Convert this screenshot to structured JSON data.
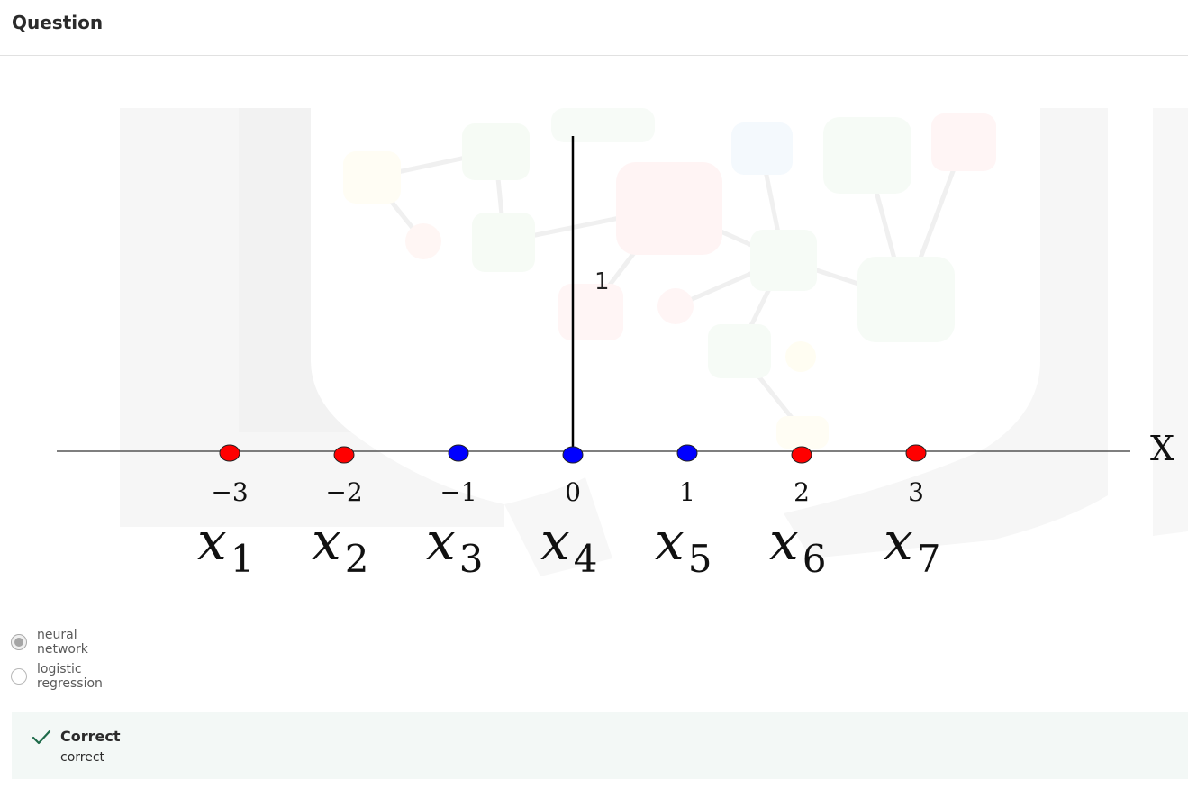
{
  "header": {
    "title": "Question"
  },
  "figure": {
    "y_tick_label": "1",
    "axis_label": "X",
    "points": [
      {
        "x": -3,
        "tick": "−3",
        "var": "x",
        "sub": "1",
        "color": "#ff0000"
      },
      {
        "x": -2,
        "tick": "−2",
        "var": "x",
        "sub": "2",
        "color": "#ff0000"
      },
      {
        "x": -1,
        "tick": "−1",
        "var": "x",
        "sub": "3",
        "color": "#0000ff"
      },
      {
        "x": 0,
        "tick": "0",
        "var": "x",
        "sub": "4",
        "color": "#0000ff"
      },
      {
        "x": 1,
        "tick": "1",
        "var": "x",
        "sub": "5",
        "color": "#0000ff"
      },
      {
        "x": 2,
        "tick": "2",
        "var": "x",
        "sub": "6",
        "color": "#ff0000"
      },
      {
        "x": 3,
        "tick": "3",
        "var": "x",
        "sub": "7",
        "color": "#ff0000"
      }
    ]
  },
  "options": [
    {
      "label": "neural network",
      "checked": true
    },
    {
      "label": "logistic regression",
      "checked": false
    }
  ],
  "feedback": {
    "title": "Correct",
    "text": "correct",
    "accent_color": "#1e6b4a"
  }
}
